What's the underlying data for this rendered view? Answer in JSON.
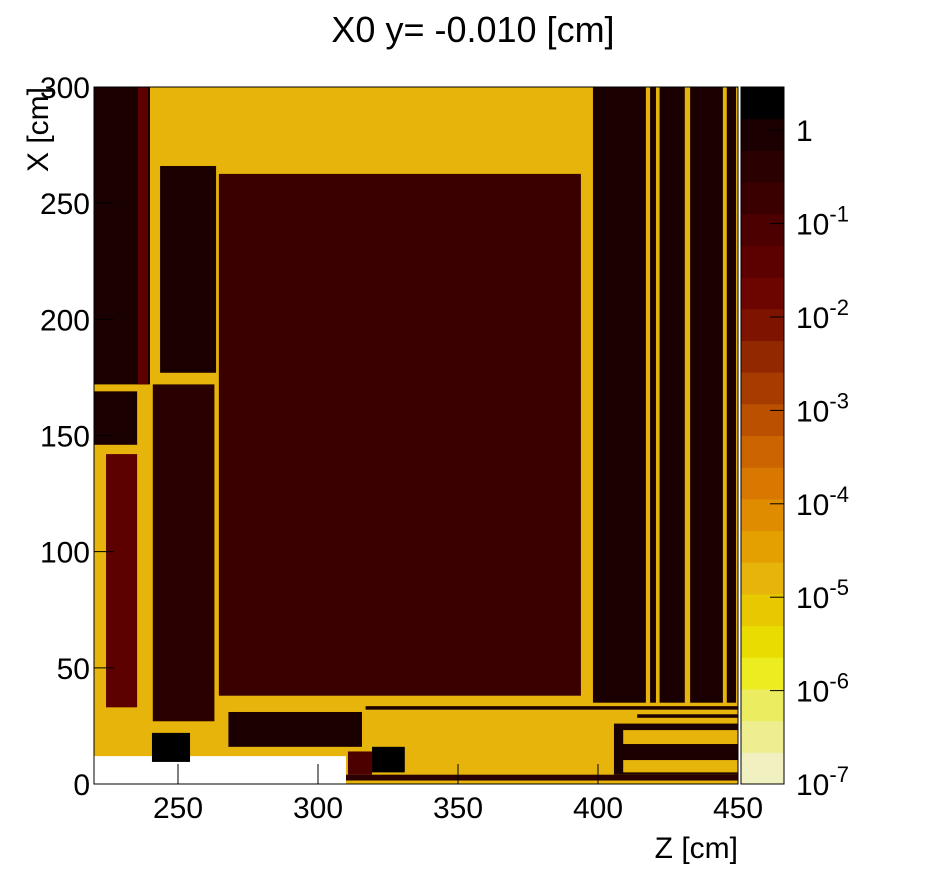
{
  "chart_data": {
    "type": "heatmap",
    "title": "X0 y= -0.010 [cm]",
    "x_label": "Z [cm]",
    "y_label": "X [cm]",
    "xlim": [
      220,
      450
    ],
    "xticks": [
      250,
      300,
      350,
      400,
      450
    ],
    "ylim": [
      0,
      300
    ],
    "yticks": [
      0,
      50,
      100,
      150,
      200,
      250,
      300
    ],
    "zlim": [
      1e-07,
      2.9
    ],
    "zlog": true,
    "zticks": [
      {
        "value": 1e-07,
        "label": "10",
        "superscript": "-7"
      },
      {
        "value": 1e-06,
        "label": "10",
        "superscript": "-6"
      },
      {
        "value": 1e-05,
        "label": "10",
        "superscript": "-5"
      },
      {
        "value": 0.0001,
        "label": "10",
        "superscript": "-4"
      },
      {
        "value": 0.001,
        "label": "10",
        "superscript": "-3"
      },
      {
        "value": 0.01,
        "label": "10",
        "superscript": "-2"
      },
      {
        "value": 0.1,
        "label": "10",
        "superscript": "-1"
      },
      1
    ],
    "palette": [
      "#f0f0c0",
      "#eeee90",
      "#ecec60",
      "#ecec20",
      "#e8dc00",
      "#e8c800",
      "#e6b40a",
      "#e4a000",
      "#e08c00",
      "#d87800",
      "#cc6400",
      "#ba5000",
      "#a63c00",
      "#922800",
      "#7e1400",
      "#6c0400",
      "#5c0000",
      "#4c0000",
      "#3a0000",
      "#2a0000",
      "#1a0000",
      "#000000"
    ],
    "regions": [
      {
        "z": [
          220,
          310
        ],
        "x": [
          12,
          300
        ],
        "value": 1.5e-05
      },
      {
        "z": [
          310,
          450
        ],
        "x": [
          0,
          300
        ],
        "value": 1.5e-05
      },
      {
        "z": [
          220,
          240
        ],
        "x": [
          172,
          300
        ],
        "value": 0.8
      },
      {
        "z": [
          235.7,
          239.3
        ],
        "x": [
          172,
          300
        ],
        "value": 0.04
      },
      {
        "z": [
          220,
          235.4
        ],
        "x": [
          146,
          169
        ],
        "value": 0.8
      },
      {
        "z": [
          224.3,
          235.4
        ],
        "x": [
          33,
          142
        ],
        "value": 0.04
      },
      {
        "z": [
          243.6,
          263.6
        ],
        "x": [
          177,
          266
        ],
        "value": 0.8
      },
      {
        "z": [
          241,
          263
        ],
        "x": [
          27,
          172
        ],
        "value": 0.4
      },
      {
        "z": [
          264.6,
          393.9
        ],
        "x": [
          38,
          262.6
        ],
        "value": 0.2
      },
      {
        "z": [
          398.2,
          417.1
        ],
        "x": [
          35,
          300
        ],
        "value": 0.8
      },
      {
        "z": [
          418.6,
          420.7
        ],
        "x": [
          35,
          300
        ],
        "value": 0.8
      },
      {
        "z": [
          422,
          431
        ],
        "x": [
          35,
          300
        ],
        "value": 0.8
      },
      {
        "z": [
          432.9,
          444.6
        ],
        "x": [
          35,
          300
        ],
        "value": 0.8
      },
      {
        "z": [
          446,
          449.3
        ],
        "x": [
          35,
          300
        ],
        "value": 0.8
      },
      {
        "z": [
          268,
          315.7
        ],
        "x": [
          16,
          31
        ],
        "value": 0.9
      },
      {
        "z": [
          240.7,
          254.3
        ],
        "x": [
          9.5,
          22
        ],
        "value": 2
      },
      {
        "z": [
          319.3,
          331
        ],
        "x": [
          5,
          16
        ],
        "value": 2
      },
      {
        "z": [
          310.7,
          319.3
        ],
        "x": [
          4,
          14
        ],
        "value": 0.08
      },
      {
        "z": [
          405.7,
          450
        ],
        "x": [
          4,
          26
        ],
        "value": 0.8
      },
      {
        "z": [
          409,
          450
        ],
        "x": [
          17.2,
          23.2
        ],
        "value": 1.5e-05
      },
      {
        "z": [
          409,
          450
        ],
        "x": [
          5,
          10.3
        ],
        "value": 1.5e-05
      },
      {
        "z": [
          414,
          450
        ],
        "x": [
          28.5,
          30
        ],
        "value": 0.8
      },
      {
        "z": [
          317,
          450
        ],
        "x": [
          32,
          33.5
        ],
        "value": 0.8
      },
      {
        "z": [
          310,
          450
        ],
        "x": [
          1.5,
          4
        ],
        "value": 0.4
      }
    ]
  }
}
